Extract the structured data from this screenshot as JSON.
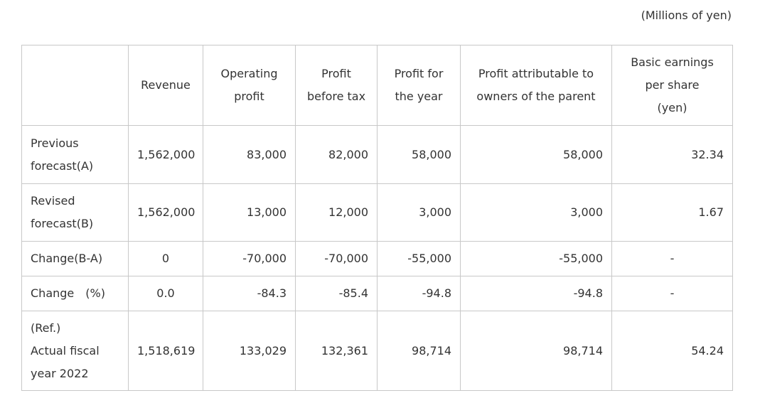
{
  "note": "(Millions of yen)",
  "table": {
    "header": [
      [
        "Revenue"
      ],
      [
        "Operating",
        "profit"
      ],
      [
        "Profit",
        "before tax"
      ],
      [
        "Profit for",
        "the year"
      ],
      [
        "Profit attributable to",
        "owners of the parent"
      ],
      [
        "Basic earnings",
        "per share",
        "(yen)"
      ]
    ],
    "rows": [
      {
        "label": [
          "Previous",
          "forecast(A)"
        ],
        "cells": [
          "1,562,000",
          "83,000",
          "82,000",
          "58,000",
          "58,000",
          "32.34"
        ]
      },
      {
        "label": [
          "Revised",
          "forecast(B)"
        ],
        "cells": [
          "1,562,000",
          "13,000",
          "12,000",
          "3,000",
          "3,000",
          "1.67"
        ]
      },
      {
        "label": [
          "Change(B-A)"
        ],
        "cells": [
          "0",
          "-70,000",
          "-70,000",
          "-55,000",
          "-55,000",
          "-"
        ]
      },
      {
        "label": [
          "Change　(%)"
        ],
        "cells": [
          "0.0",
          "-84.3",
          "-85.4",
          "-94.8",
          "-94.8",
          "-"
        ]
      },
      {
        "label": [
          "(Ref.)",
          "Actual fiscal",
          "year 2022"
        ],
        "cells": [
          "1,518,619",
          "133,029",
          "132,361",
          "98,714",
          "98,714",
          "54.24"
        ]
      }
    ]
  }
}
